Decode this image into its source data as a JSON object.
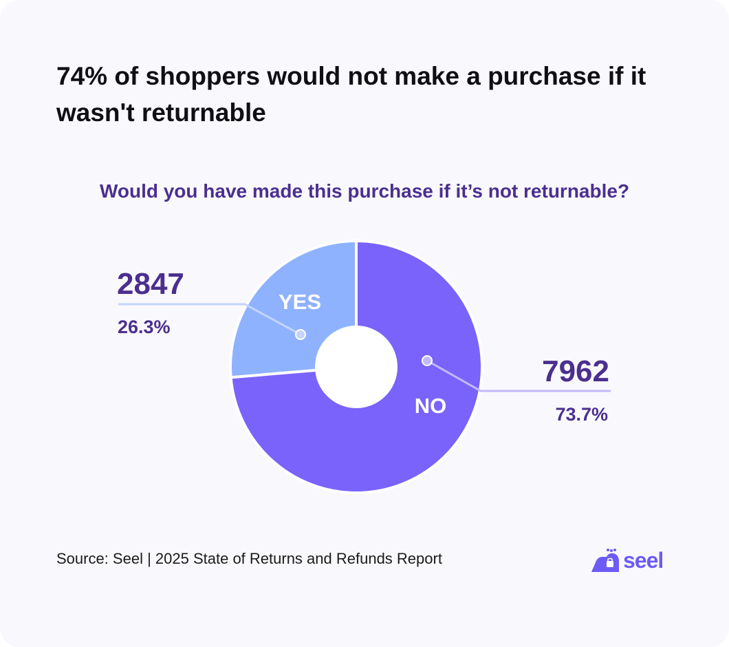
{
  "title": "74% of shoppers would not make a purchase if it wasn't returnable",
  "chart_data": {
    "type": "pie",
    "title": "Would you have made this purchase if it’s not returnable?",
    "donut": true,
    "slices": [
      {
        "label": "YES",
        "value": 2847,
        "percent": "26.3%",
        "color": "#8fb2ff"
      },
      {
        "label": "NO",
        "value": 7962,
        "percent": "73.7%",
        "color": "#7963fb"
      }
    ]
  },
  "colors": {
    "title": "#0f0f14",
    "accent_text": "#4b2f8f",
    "leader_yes": "#c3d4ff",
    "leader_no": "#c4b8fd"
  },
  "source": "Source: Seel | 2025 State of Returns and Refunds Report",
  "logo": {
    "text": "seel",
    "icon": "seal-mascot-icon",
    "color": "#6d5bf5"
  }
}
